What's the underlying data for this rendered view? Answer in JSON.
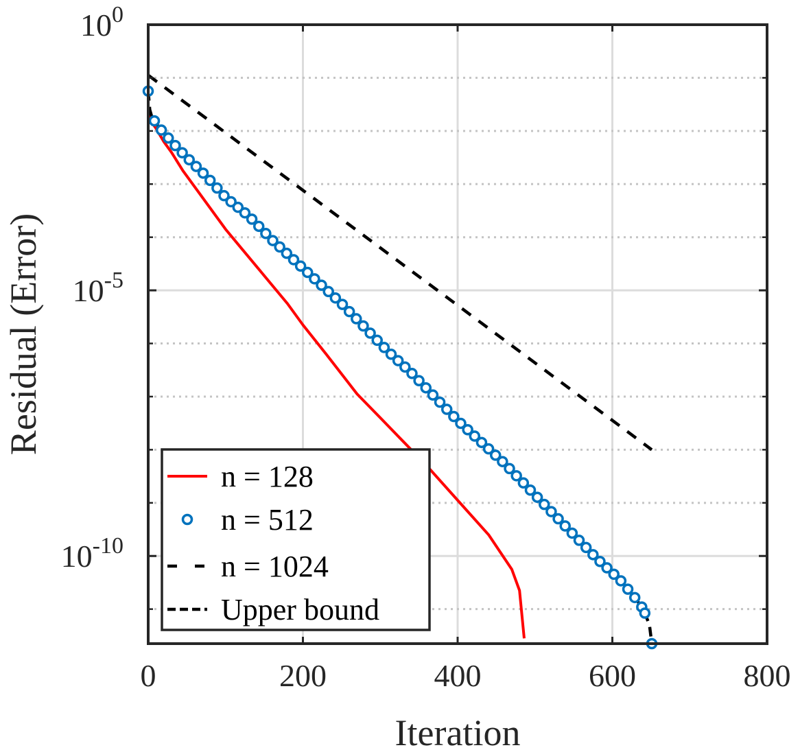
{
  "chart_data": {
    "type": "line",
    "title": "",
    "xlabel": "Iteration",
    "ylabel": "Residual (Error)",
    "xlim": [
      0,
      800
    ],
    "ylim_log10": [
      -11.65,
      0
    ],
    "yscale": "log",
    "grid": true,
    "x_ticks": [
      0,
      200,
      400,
      600,
      800
    ],
    "x_tick_labels": [
      "0",
      "200",
      "400",
      "600",
      "800"
    ],
    "y_ticks_log10": [
      0,
      -5,
      -10
    ],
    "y_tick_labels": [
      {
        "base": "10",
        "exp": "0"
      },
      {
        "base": "10",
        "exp": "-5"
      },
      {
        "base": "10",
        "exp": "-10"
      }
    ],
    "legend_position": "bottom-left",
    "series": [
      {
        "name": "n = 128",
        "color": "#ff0000",
        "style": "solid",
        "points": [
          [
            0,
            -1.55
          ],
          [
            5,
            -1.85
          ],
          [
            10,
            -1.95
          ],
          [
            20,
            -2.2
          ],
          [
            30,
            -2.4
          ],
          [
            45,
            -2.75
          ],
          [
            60,
            -3.05
          ],
          [
            80,
            -3.45
          ],
          [
            100,
            -3.85
          ],
          [
            120,
            -4.2
          ],
          [
            140,
            -4.55
          ],
          [
            160,
            -4.9
          ],
          [
            180,
            -5.25
          ],
          [
            200,
            -5.65
          ],
          [
            230,
            -6.2
          ],
          [
            270,
            -6.95
          ],
          [
            300,
            -7.4
          ],
          [
            330,
            -7.85
          ],
          [
            360,
            -8.3
          ],
          [
            400,
            -8.95
          ],
          [
            440,
            -9.6
          ],
          [
            470,
            -10.25
          ],
          [
            480,
            -10.65
          ],
          [
            486,
            -11.55
          ]
        ]
      },
      {
        "name": "n = 512",
        "color": "#0072bd",
        "style": "markers",
        "points": [
          [
            0,
            -1.25
          ],
          [
            2,
            -1.6
          ],
          [
            5,
            -1.75
          ],
          [
            15,
            -1.95
          ],
          [
            30,
            -2.2
          ],
          [
            50,
            -2.5
          ],
          [
            75,
            -2.85
          ],
          [
            100,
            -3.25
          ],
          [
            130,
            -3.6
          ],
          [
            160,
            -4.05
          ],
          [
            190,
            -4.45
          ],
          [
            220,
            -4.85
          ],
          [
            250,
            -5.25
          ],
          [
            280,
            -5.7
          ],
          [
            310,
            -6.15
          ],
          [
            340,
            -6.55
          ],
          [
            370,
            -7.0
          ],
          [
            400,
            -7.45
          ],
          [
            430,
            -7.85
          ],
          [
            460,
            -8.25
          ],
          [
            490,
            -8.7
          ],
          [
            520,
            -9.15
          ],
          [
            550,
            -9.6
          ],
          [
            580,
            -10.05
          ],
          [
            610,
            -10.45
          ],
          [
            630,
            -10.8
          ],
          [
            640,
            -11.0
          ],
          [
            648,
            -11.3
          ],
          [
            651,
            -11.65
          ]
        ]
      },
      {
        "name": "n = 1024",
        "color": "#000000",
        "style": "dashed",
        "points": [
          [
            0,
            -1.25
          ],
          [
            2,
            -1.6
          ],
          [
            5,
            -1.75
          ],
          [
            15,
            -1.95
          ],
          [
            30,
            -2.2
          ],
          [
            50,
            -2.5
          ],
          [
            75,
            -2.85
          ],
          [
            100,
            -3.25
          ],
          [
            130,
            -3.6
          ],
          [
            160,
            -4.05
          ],
          [
            190,
            -4.45
          ],
          [
            220,
            -4.85
          ],
          [
            250,
            -5.25
          ],
          [
            280,
            -5.7
          ],
          [
            310,
            -6.15
          ],
          [
            340,
            -6.55
          ],
          [
            370,
            -7.0
          ],
          [
            400,
            -7.45
          ],
          [
            430,
            -7.85
          ],
          [
            460,
            -8.25
          ],
          [
            490,
            -8.7
          ],
          [
            520,
            -9.15
          ],
          [
            550,
            -9.6
          ],
          [
            580,
            -10.05
          ],
          [
            610,
            -10.45
          ],
          [
            630,
            -10.8
          ],
          [
            640,
            -11.0
          ],
          [
            648,
            -11.3
          ],
          [
            651,
            -11.65
          ]
        ]
      },
      {
        "name": "Upper bound",
        "color": "#000000",
        "style": "dashed-short",
        "points": [
          [
            0,
            -0.95
          ],
          [
            651,
            -8.0
          ]
        ]
      }
    ]
  }
}
